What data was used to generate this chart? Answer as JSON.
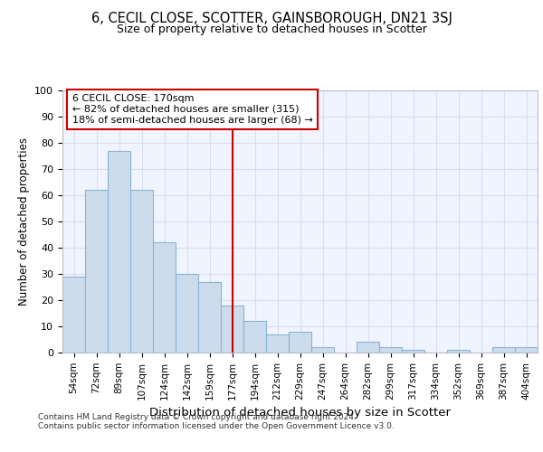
{
  "title1": "6, CECIL CLOSE, SCOTTER, GAINSBOROUGH, DN21 3SJ",
  "title2": "Size of property relative to detached houses in Scotter",
  "xlabel": "Distribution of detached houses by size in Scotter",
  "ylabel": "Number of detached properties",
  "categories": [
    "54sqm",
    "72sqm",
    "89sqm",
    "107sqm",
    "124sqm",
    "142sqm",
    "159sqm",
    "177sqm",
    "194sqm",
    "212sqm",
    "229sqm",
    "247sqm",
    "264sqm",
    "282sqm",
    "299sqm",
    "317sqm",
    "334sqm",
    "352sqm",
    "369sqm",
    "387sqm",
    "404sqm"
  ],
  "values": [
    29,
    62,
    77,
    62,
    42,
    30,
    27,
    18,
    12,
    7,
    8,
    2,
    0,
    4,
    2,
    1,
    0,
    1,
    0,
    2,
    2
  ],
  "bar_color": "#ccdcec",
  "bar_edge_color": "#8ab4d4",
  "vline_color": "#cc0000",
  "annotation_title": "6 CECIL CLOSE: 170sqm",
  "annotation_line1": "← 82% of detached houses are smaller (315)",
  "annotation_line2": "18% of semi-detached houses are larger (68) →",
  "annotation_box_color": "#ffffff",
  "annotation_box_edge": "#cc0000",
  "ylim": [
    0,
    100
  ],
  "yticks": [
    0,
    10,
    20,
    30,
    40,
    50,
    60,
    70,
    80,
    90,
    100
  ],
  "footer1": "Contains HM Land Registry data © Crown copyright and database right 2024.",
  "footer2": "Contains public sector information licensed under the Open Government Licence v3.0.",
  "bg_color": "#ffffff",
  "plot_bg_color": "#f0f4ff",
  "grid_color": "#d8dff0"
}
